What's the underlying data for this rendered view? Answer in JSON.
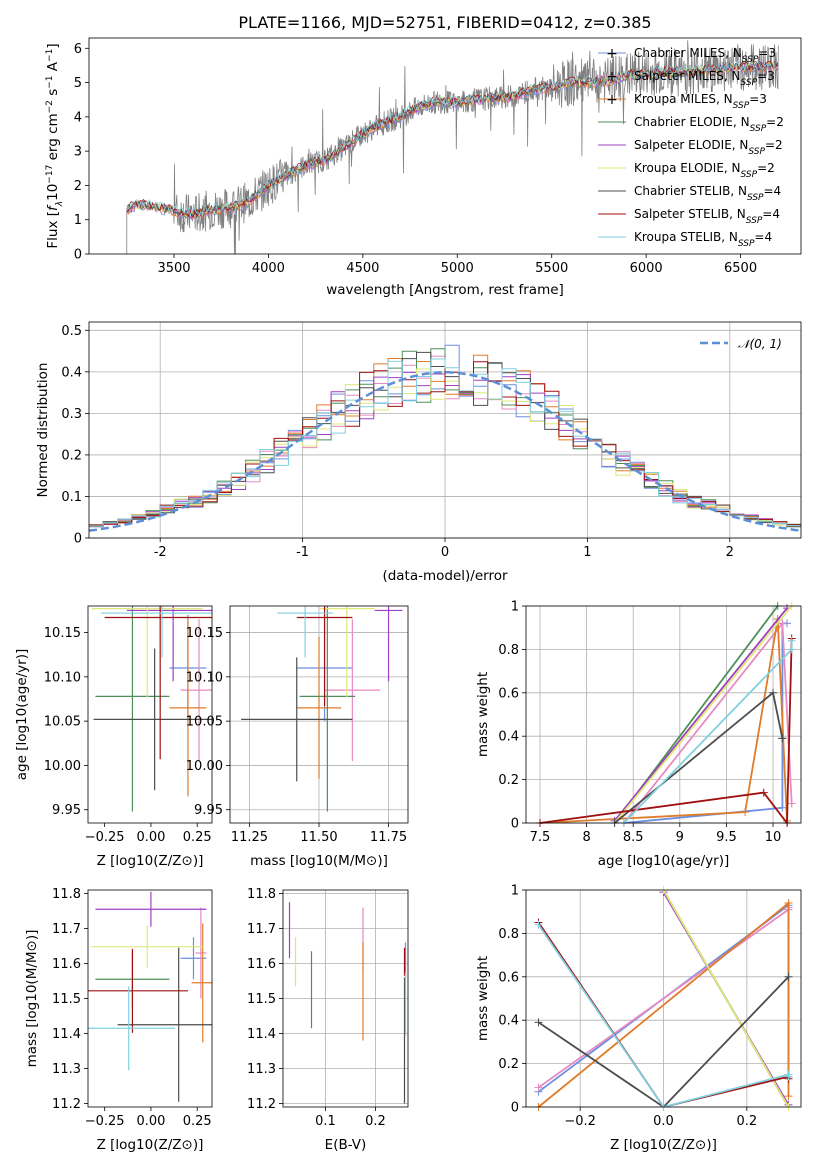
{
  "title": "PLATE=1166, MJD=52751, FIBERID=0412, z=0.385",
  "colors": {
    "chabrier_miles": "#6d8fe0",
    "salpeter_miles": "#e78ac3",
    "kroupa_miles": "#e07b2a",
    "chabrier_elodie": "#4f8f5a",
    "salpeter_elodie": "#a040c0",
    "kroupa_elodie": "#dde878",
    "chabrier_stelib": "#4d4d4d",
    "salpeter_stelib": "#a01010",
    "kroupa_stelib": "#80d0e0",
    "data": "#808080",
    "normal": "#5b8fd6"
  },
  "chart_data": [
    {
      "id": "spectrum",
      "type": "line",
      "title": "PLATE=1166, MJD=52751, FIBERID=0412, z=0.385",
      "xlabel": "wavelength [Angstrom, rest frame]",
      "ylabel": "Flux [f_λ10^-17 erg cm^-2 s^-1 A^-1]",
      "xlim": [
        3050,
        6820
      ],
      "ylim": [
        0,
        6.3
      ],
      "xticks": [
        3500,
        4000,
        4500,
        5000,
        5500,
        6000,
        6500
      ],
      "yticks": [
        0,
        1,
        2,
        3,
        4,
        5,
        6
      ],
      "legend_position": "top-right",
      "legend": [
        "Chabrier MILES, N_SSP=3",
        "Salpeter MILES, N_SSP=3",
        "Kroupa MILES, N_SSP=3",
        "Chabrier ELODIE, N_SSP=2",
        "Salpeter ELODIE, N_SSP=2",
        "Kroupa ELODIE, N_SSP=2",
        "Chabrier STELIB, N_SSP=4",
        "Salpeter STELIB, N_SSP=4",
        "Kroupa STELIB, N_SSP=4"
      ],
      "continuum": [
        [
          3250,
          1.28
        ],
        [
          3300,
          1.45
        ],
        [
          3400,
          1.38
        ],
        [
          3500,
          1.25
        ],
        [
          3600,
          1.15
        ],
        [
          3700,
          1.3
        ],
        [
          3800,
          1.35
        ],
        [
          3900,
          1.55
        ],
        [
          4000,
          2.0
        ],
        [
          4100,
          2.3
        ],
        [
          4200,
          2.6
        ],
        [
          4300,
          2.75
        ],
        [
          4400,
          3.1
        ],
        [
          4500,
          3.5
        ],
        [
          4600,
          3.8
        ],
        [
          4700,
          4.0
        ],
        [
          4800,
          4.3
        ],
        [
          4900,
          4.45
        ],
        [
          5000,
          4.4
        ],
        [
          5100,
          4.5
        ],
        [
          5200,
          4.55
        ],
        [
          5300,
          4.6
        ],
        [
          5400,
          4.8
        ],
        [
          5500,
          4.85
        ],
        [
          5600,
          5.0
        ],
        [
          5700,
          5.0
        ],
        [
          5800,
          5.05
        ],
        [
          5900,
          5.2
        ],
        [
          6000,
          5.25
        ],
        [
          6100,
          5.3
        ],
        [
          6200,
          5.3
        ],
        [
          6300,
          5.35
        ],
        [
          6400,
          5.4
        ],
        [
          6500,
          5.45
        ],
        [
          6600,
          5.45
        ],
        [
          6700,
          5.5
        ]
      ]
    },
    {
      "id": "residuals",
      "type": "histogram",
      "xlabel": "(data-model)/error",
      "ylabel": "Normed distribution",
      "xlim": [
        -2.5,
        2.5
      ],
      "ylim": [
        0,
        0.52
      ],
      "xticks": [
        -2,
        -1,
        0,
        1,
        2
      ],
      "yticks": [
        0.0,
        0.1,
        0.2,
        0.3,
        0.4,
        0.5
      ],
      "legend": [
        "𝒩(0, 1)"
      ],
      "legend_position": "top-right",
      "grid": true
    },
    {
      "id": "age_vs_Z",
      "type": "scatter",
      "xlabel": "Z [log10(Z/Z⊙)]",
      "ylabel": "age  [log10(age/yr)]",
      "xlim": [
        -0.34,
        0.33
      ],
      "ylim": [
        9.935,
        10.18
      ],
      "xticks": [
        -0.25,
        0.0,
        0.25
      ],
      "xticklabels": [
        "−0.25",
        "0.00",
        "0.25"
      ],
      "yticks": [
        9.95,
        10.0,
        10.05,
        10.1,
        10.15
      ],
      "yticklabels": [
        "9.95",
        "10.00",
        "10.05",
        "10.10",
        "10.15"
      ],
      "grid": false,
      "points": [
        {
          "model": "chabrier_miles",
          "x": 0.2,
          "y": 10.11,
          "xerr": 0.1,
          "yerr": 0.06
        },
        {
          "model": "salpeter_miles",
          "x": 0.26,
          "y": 10.085,
          "xerr": 0.1,
          "yerr": 0.08
        },
        {
          "model": "kroupa_miles",
          "x": 0.2,
          "y": 10.065,
          "xerr": 0.1,
          "yerr": 0.1
        },
        {
          "model": "chabrier_elodie",
          "x": -0.1,
          "y": 10.078,
          "xerr": 0.2,
          "yerr": 0.13
        },
        {
          "model": "salpeter_elodie",
          "x": 0.12,
          "y": 10.175,
          "xerr": 0.25,
          "yerr": 0.08
        },
        {
          "model": "kroupa_elodie",
          "x": -0.02,
          "y": 10.177,
          "xerr": 0.3,
          "yerr": 0.1
        },
        {
          "model": "chabrier_stelib",
          "x": 0.02,
          "y": 10.052,
          "xerr": 0.33,
          "yerr": 0.08
        },
        {
          "model": "salpeter_stelib",
          "x": 0.05,
          "y": 10.167,
          "xerr": 0.3,
          "yerr": 0.16
        },
        {
          "model": "kroupa_stelib",
          "x": 0.06,
          "y": 10.172,
          "xerr": 0.33,
          "yerr": 0.05
        }
      ]
    },
    {
      "id": "age_vs_mass",
      "type": "scatter",
      "xlabel": "mass [log10(M/M⊙)]",
      "xlim": [
        11.18,
        11.82
      ],
      "ylim": [
        9.935,
        10.18
      ],
      "xticks": [
        11.25,
        11.5,
        11.75
      ],
      "xticklabels": [
        "11.25",
        "11.50",
        "11.75"
      ],
      "yticks": [
        9.95,
        10.0,
        10.05,
        10.1,
        10.15
      ],
      "yticklabels": [
        "9.95",
        "10.00",
        "10.05",
        "10.10",
        "10.15"
      ],
      "grid": true,
      "points": [
        {
          "model": "chabrier_miles",
          "x": 11.52,
          "y": 10.11,
          "xerr": 0.1,
          "yerr": 0.06
        },
        {
          "model": "salpeter_miles",
          "x": 11.62,
          "y": 10.085,
          "xerr": 0.1,
          "yerr": 0.08
        },
        {
          "model": "kroupa_miles",
          "x": 11.5,
          "y": 10.065,
          "xerr": 0.08,
          "yerr": 0.08
        },
        {
          "model": "chabrier_elodie",
          "x": 11.53,
          "y": 10.078,
          "xerr": 0.1,
          "yerr": 0.13
        },
        {
          "model": "salpeter_elodie",
          "x": 11.75,
          "y": 10.175,
          "xerr": 0.05,
          "yerr": 0.08
        },
        {
          "model": "kroupa_elodie",
          "x": 11.6,
          "y": 10.177,
          "xerr": 0.1,
          "yerr": 0.1
        },
        {
          "model": "chabrier_stelib",
          "x": 11.42,
          "y": 10.052,
          "xerr": 0.2,
          "yerr": 0.07
        },
        {
          "model": "salpeter_stelib",
          "x": 11.52,
          "y": 10.167,
          "xerr": 0.1,
          "yerr": 0.1
        },
        {
          "model": "kroupa_stelib",
          "x": 11.45,
          "y": 10.172,
          "xerr": 0.1,
          "yerr": 0.05
        }
      ]
    },
    {
      "id": "mass_weight_vs_age",
      "type": "line",
      "xlabel": "age  [log10(age/yr)]",
      "ylabel": "mass weight",
      "xlim": [
        7.35,
        10.3
      ],
      "ylim": [
        0,
        1.0
      ],
      "xticks": [
        7.5,
        8.0,
        8.5,
        9.0,
        9.5,
        10.0
      ],
      "yticks": [
        0.0,
        0.2,
        0.4,
        0.6,
        0.8,
        1.0
      ],
      "grid": true,
      "series": [
        {
          "model": "chabrier_miles",
          "x": [
            8.4,
            10.1,
            10.1,
            10.15
          ],
          "y": [
            0.0,
            0.07,
            0.92,
            0.92
          ]
        },
        {
          "model": "salpeter_miles",
          "x": [
            8.4,
            10.1,
            10.2,
            10.2
          ],
          "y": [
            0.0,
            0.92,
            0.09,
            0.09
          ]
        },
        {
          "model": "kroupa_miles",
          "x": [
            7.5,
            9.7,
            10.05,
            10.15
          ],
          "y": [
            0.0,
            0.05,
            0.94,
            0.01
          ]
        },
        {
          "model": "chabrier_elodie",
          "x": [
            8.3,
            10.05
          ],
          "y": [
            0.0,
            1.0
          ]
        },
        {
          "model": "salpeter_elodie",
          "x": [
            8.3,
            10.15
          ],
          "y": [
            0.01,
            0.99
          ]
        },
        {
          "model": "kroupa_elodie",
          "x": [
            8.3,
            10.2
          ],
          "y": [
            0.0,
            1.0
          ]
        },
        {
          "model": "chabrier_stelib",
          "x": [
            8.3,
            10.0,
            10.1,
            10.1
          ],
          "y": [
            0.0,
            0.6,
            0.39,
            0.39
          ]
        },
        {
          "model": "salpeter_stelib",
          "x": [
            7.5,
            9.9,
            10.15,
            10.2
          ],
          "y": [
            0.0,
            0.14,
            0.0,
            0.85
          ]
        },
        {
          "model": "kroupa_stelib",
          "x": [
            8.4,
            10.2,
            10.2
          ],
          "y": [
            0.0,
            0.8,
            0.84
          ]
        }
      ]
    },
    {
      "id": "mass_vs_Z",
      "type": "scatter",
      "xlabel": "Z [log10(Z/Z⊙)]",
      "ylabel": "mass [log10(M/M⊙)]",
      "xlim": [
        -0.34,
        0.33
      ],
      "ylim": [
        11.19,
        11.81
      ],
      "xticks": [
        -0.25,
        0.0,
        0.25
      ],
      "xticklabels": [
        "−0.25",
        "0.00",
        "0.25"
      ],
      "yticks": [
        11.2,
        11.3,
        11.4,
        11.5,
        11.6,
        11.7,
        11.8
      ],
      "yticklabels": [
        "11.2",
        "11.3",
        "11.4",
        "11.5",
        "11.6",
        "11.7",
        "11.8"
      ],
      "grid": false,
      "points": [
        {
          "model": "chabrier_miles",
          "x": 0.23,
          "y": 11.615,
          "xerr": 0.07,
          "yerr": 0.06
        },
        {
          "model": "salpeter_miles",
          "x": 0.27,
          "y": 11.63,
          "xerr": 0.03,
          "yerr": 0.13
        },
        {
          "model": "kroupa_miles",
          "x": 0.28,
          "y": 11.545,
          "xerr": 0.06,
          "yerr": 0.17
        },
        {
          "model": "chabrier_elodie",
          "x": -0.1,
          "y": 11.555,
          "xerr": 0.2,
          "yerr": 0.08
        },
        {
          "model": "salpeter_elodie",
          "x": 0.0,
          "y": 11.755,
          "xerr": 0.3,
          "yerr": 0.05
        },
        {
          "model": "kroupa_elodie",
          "x": -0.02,
          "y": 11.648,
          "xerr": 0.3,
          "yerr": 0.06
        },
        {
          "model": "chabrier_stelib",
          "x": 0.15,
          "y": 11.425,
          "xerr": 0.33,
          "yerr": 0.22
        },
        {
          "model": "salpeter_stelib",
          "x": -0.1,
          "y": 11.522,
          "xerr": 0.3,
          "yerr": 0.12
        },
        {
          "model": "kroupa_stelib",
          "x": -0.12,
          "y": 11.415,
          "xerr": 0.25,
          "yerr": 0.12
        }
      ]
    },
    {
      "id": "mass_vs_ebv",
      "type": "scatter",
      "xlabel": "E(B-V)",
      "xlim": [
        0.015,
        0.265
      ],
      "ylim": [
        11.19,
        11.81
      ],
      "xticks": [
        0.1,
        0.2
      ],
      "xticklabels": [
        "0.1",
        "0.2"
      ],
      "yticks": [
        11.2,
        11.3,
        11.4,
        11.5,
        11.6,
        11.7,
        11.8
      ],
      "yticklabels": [
        "11.2",
        "11.3",
        "11.4",
        "11.5",
        "11.6",
        "11.7",
        "11.8"
      ],
      "grid": true,
      "points": [
        {
          "model": "chabrier_miles",
          "x": 0.26,
          "y": 11.61,
          "yerr": 0.05
        },
        {
          "model": "salpeter_miles",
          "x": 0.175,
          "y": 11.67,
          "yerr": 0.09
        },
        {
          "model": "kroupa_miles",
          "x": 0.175,
          "y": 11.52,
          "yerr": 0.14
        },
        {
          "model": "chabrier_elodie",
          "x": 0.072,
          "y": 11.525,
          "yerr": 0.11
        },
        {
          "model": "salpeter_elodie",
          "x": 0.028,
          "y": 11.695,
          "yerr": 0.08
        },
        {
          "model": "kroupa_elodie",
          "x": 0.04,
          "y": 11.605,
          "yerr": 0.07
        },
        {
          "model": "chabrier_stelib",
          "x": 0.258,
          "y": 11.38,
          "yerr": 0.18
        },
        {
          "model": "salpeter_stelib",
          "x": 0.258,
          "y": 11.605,
          "yerr": 0.04
        },
        {
          "model": "kroupa_stelib",
          "x": 0.26,
          "y": 11.485,
          "yerr": 0.09
        }
      ]
    },
    {
      "id": "mass_weight_vs_Z",
      "type": "line",
      "xlabel": "Z [log10(Z/Z⊙)]",
      "ylabel": "mass weight",
      "xlim": [
        -0.33,
        0.33
      ],
      "ylim": [
        0,
        1.0
      ],
      "xticks": [
        -0.2,
        0.0,
        0.2
      ],
      "xticklabels": [
        "−0.2",
        "0.0",
        "0.2"
      ],
      "yticks": [
        0.0,
        0.2,
        0.4,
        0.6,
        0.8,
        1.0
      ],
      "grid": true,
      "series": [
        {
          "model": "chabrier_miles",
          "x": [
            -0.3,
            0.3,
            0.3
          ],
          "y": [
            0.07,
            0.93,
            0.14
          ]
        },
        {
          "model": "salpeter_miles",
          "x": [
            -0.3,
            0.3,
            0.3
          ],
          "y": [
            0.09,
            0.91,
            0.92
          ]
        },
        {
          "model": "kroupa_miles",
          "x": [
            -0.3,
            0.3,
            0.3
          ],
          "y": [
            0.0,
            0.94,
            0.05
          ]
        },
        {
          "model": "chabrier_elodie",
          "x": [
            0.0,
            0.3
          ],
          "y": [
            1.0,
            0.0
          ]
        },
        {
          "model": "salpeter_elodie",
          "x": [
            0.0,
            0.3
          ],
          "y": [
            0.99,
            0.01
          ]
        },
        {
          "model": "kroupa_elodie",
          "x": [
            0.0,
            0.3
          ],
          "y": [
            1.0,
            0.0
          ]
        },
        {
          "model": "chabrier_stelib",
          "x": [
            -0.3,
            0.0,
            0.3,
            0.0
          ],
          "y": [
            0.39,
            0.0,
            0.6,
            0.0
          ]
        },
        {
          "model": "salpeter_stelib",
          "x": [
            -0.3,
            0.0,
            0.3,
            0.3
          ],
          "y": [
            0.85,
            0.0,
            0.14,
            0.13
          ]
        },
        {
          "model": "kroupa_stelib",
          "x": [
            -0.3,
            0.0,
            0.3,
            0.3
          ],
          "y": [
            0.84,
            0.0,
            0.15,
            0.14
          ]
        }
      ]
    }
  ]
}
